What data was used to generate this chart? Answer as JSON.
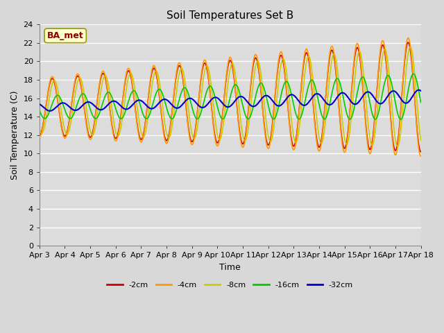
{
  "title": "Soil Temperatures Set B",
  "xlabel": "Time",
  "ylabel": "Soil Temperature (C)",
  "ylim": [
    0,
    24
  ],
  "x_tick_labels": [
    "Apr 3",
    "Apr 4",
    "Apr 5",
    "Apr 6",
    "Apr 7",
    "Apr 8",
    "Apr 9",
    "Apr 10",
    "Apr 11",
    "Apr 12",
    "Apr 13",
    "Apr 14",
    "Apr 15",
    "Apr 16",
    "Apr 17",
    "Apr 18"
  ],
  "x_tick_positions": [
    0,
    1,
    2,
    3,
    4,
    5,
    6,
    7,
    8,
    9,
    10,
    11,
    12,
    13,
    14,
    15
  ],
  "series": {
    "-2cm": {
      "color": "#cc0000",
      "lw": 1.2
    },
    "-4cm": {
      "color": "#ff9900",
      "lw": 1.2
    },
    "-8cm": {
      "color": "#cccc00",
      "lw": 1.2
    },
    "-16cm": {
      "color": "#00cc00",
      "lw": 1.2
    },
    "-32cm": {
      "color": "#0000cc",
      "lw": 1.5
    }
  },
  "annotation": {
    "text": "BA_met",
    "fontsize": 9,
    "color": "#8b0000",
    "bg_color": "#ffffcc",
    "border_color": "#999900"
  },
  "plot_bg_color": "#dcdcdc",
  "fig_bg_color": "#d8d8d8",
  "grid_color": "#ffffff",
  "title_fontsize": 11,
  "label_fontsize": 9,
  "tick_fontsize": 8
}
